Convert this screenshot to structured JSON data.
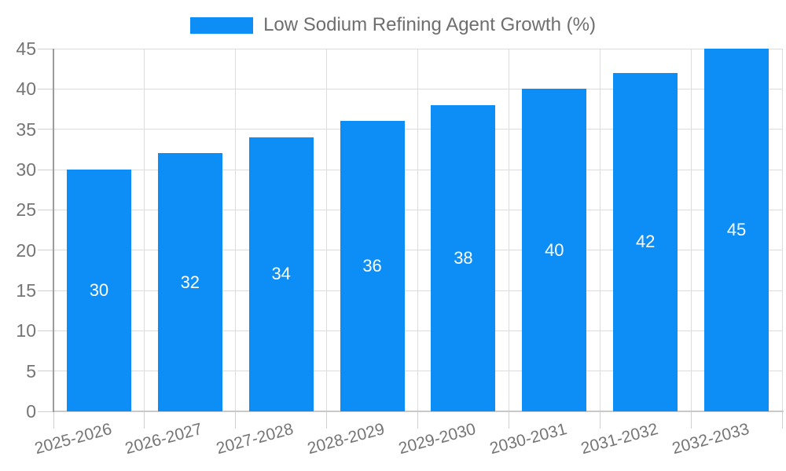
{
  "chart_data": {
    "type": "bar",
    "title": "Low Sodium Refining Agent Growth (%)",
    "legend_position": "top",
    "categories": [
      "2025-2026",
      "2026-2027",
      "2027-2028",
      "2028-2029",
      "2029-2030",
      "2030-2031",
      "2031-2032",
      "2032-2033"
    ],
    "values": [
      30,
      32,
      34,
      36,
      38,
      40,
      42,
      45
    ],
    "bar_value_labels": [
      "30",
      "32",
      "34",
      "36",
      "38",
      "40",
      "42",
      "45"
    ],
    "xlabel": "",
    "ylabel": "",
    "ylim": [
      0,
      45
    ],
    "yticks": [
      0,
      5,
      10,
      15,
      20,
      25,
      30,
      35,
      40,
      45
    ],
    "grid": true,
    "x_label_rotation_deg": -15,
    "bar_labels_inside": true,
    "colors": {
      "bar": "#0d8ef7",
      "bar_label": "#ffffff",
      "axis_text": "#757575",
      "legend_text": "#6e6e6e"
    }
  }
}
